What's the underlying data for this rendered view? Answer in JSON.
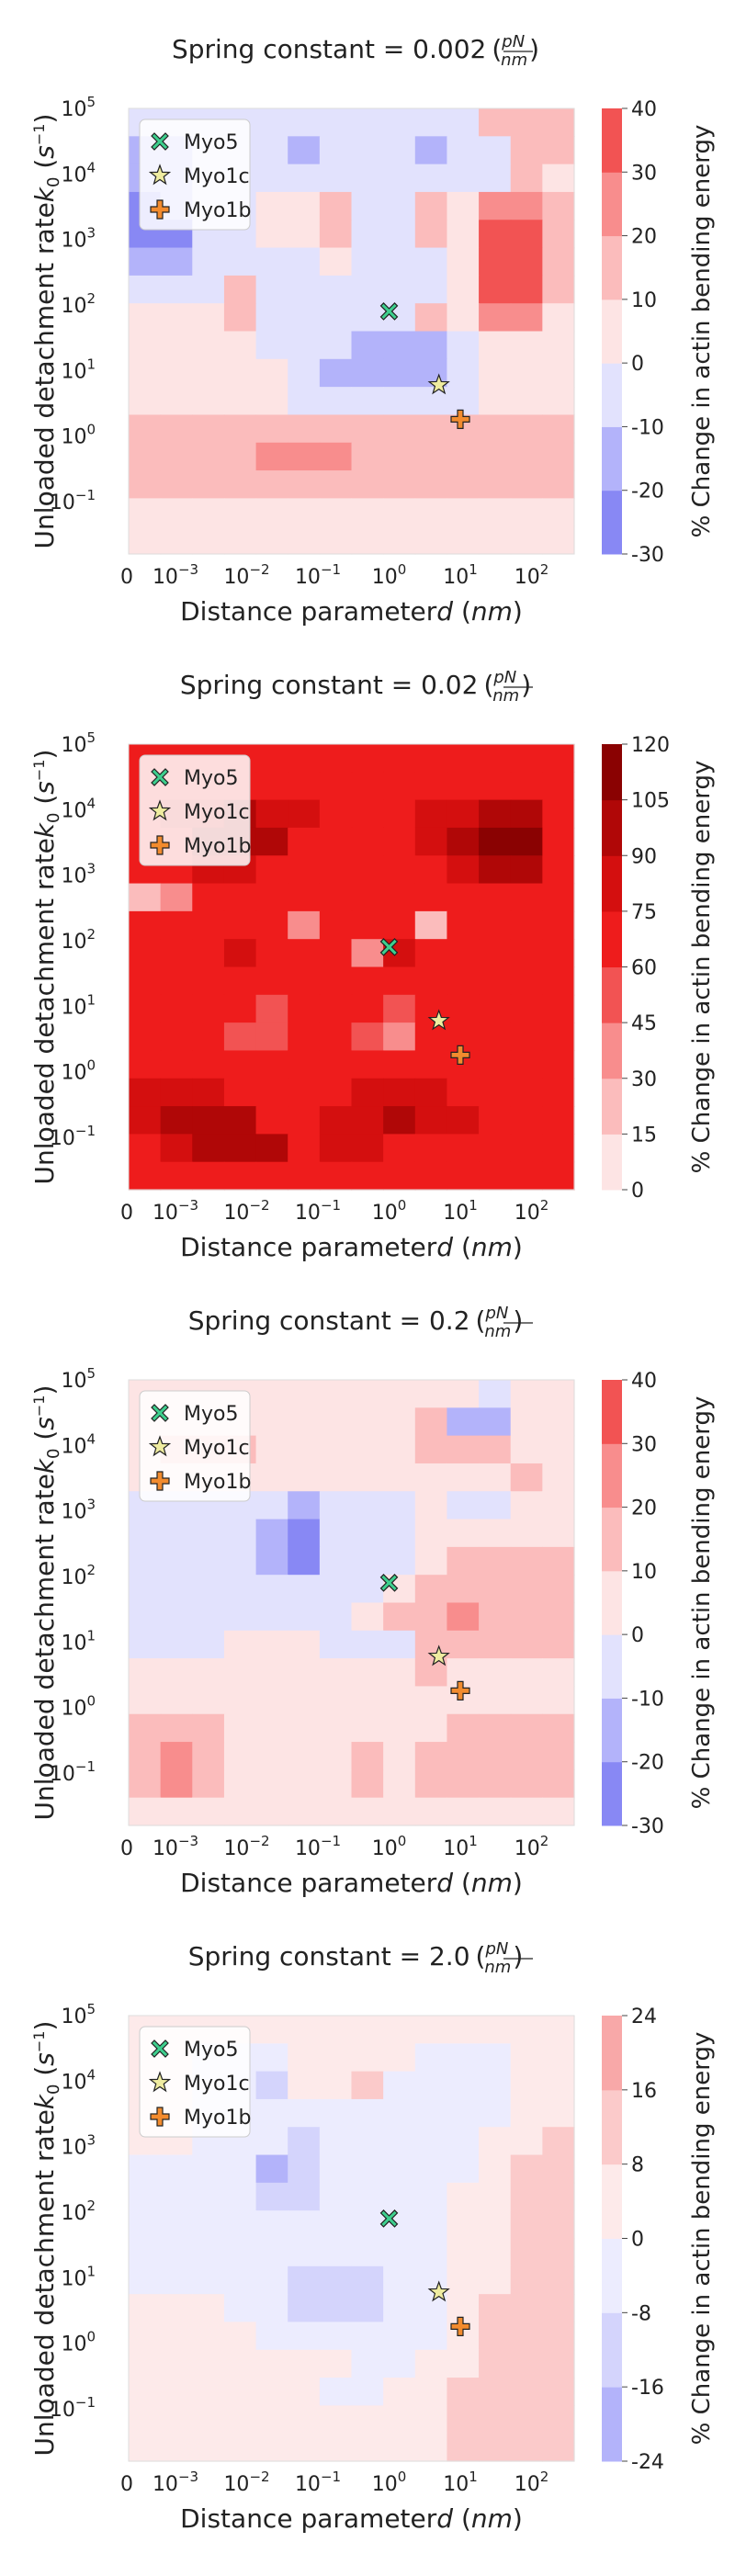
{
  "chart_data": [
    {
      "type": "heatmap",
      "subtype": "filled-contour",
      "title": "Spring constant = 0.002",
      "title_unit_num": "pN",
      "title_unit_den": "nm",
      "xlabel": "Distance parameter",
      "xlabel_var": "d",
      "xlabel_unit": "nm",
      "ylabel": "Unloaded detachment rate",
      "ylabel_var": "k",
      "ylabel_sub": "0",
      "ylabel_unit_base": "s",
      "ylabel_unit_exp": "−1",
      "xscale": "log",
      "yscale": "log",
      "xticks": [
        {
          "base": "0",
          "exp": ""
        },
        {
          "base": "10",
          "exp": "−3"
        },
        {
          "base": "10",
          "exp": "−2"
        },
        {
          "base": "10",
          "exp": "−1"
        },
        {
          "base": "10",
          "exp": "0"
        },
        {
          "base": "10",
          "exp": "1"
        },
        {
          "base": "10",
          "exp": "2"
        }
      ],
      "yticks": [
        {
          "base": "10",
          "exp": "−1"
        },
        {
          "base": "10",
          "exp": "0"
        },
        {
          "base": "10",
          "exp": "1"
        },
        {
          "base": "10",
          "exp": "2"
        },
        {
          "base": "10",
          "exp": "3"
        },
        {
          "base": "10",
          "exp": "4"
        },
        {
          "base": "10",
          "exp": "5"
        }
      ],
      "colorbar_label": "% Change in actin bending energy",
      "colorbar_ticks": [
        -30,
        -20,
        -10,
        0,
        10,
        20,
        30,
        40
      ],
      "colorbar_range": [
        -30,
        40
      ],
      "level_colors": [
        "#8888f4",
        "#b3b3fa",
        "#e2e2fd",
        "#fde4e4",
        "#fbbcbc",
        "#f88d8d",
        "#f25353"
      ],
      "legend_position": "upper-left",
      "markers": [
        {
          "name": "Myo5",
          "x": 1.0,
          "y": 80,
          "color": "#3ecf8e",
          "shape": "x"
        },
        {
          "name": "Myo1c",
          "x": 5.0,
          "y": 6,
          "color": "#efeca0",
          "shape": "star"
        },
        {
          "name": "Myo1b",
          "x": 10.0,
          "y": 1.8,
          "color": "#f28b2e",
          "shape": "plus"
        }
      ],
      "grid": false
    },
    {
      "type": "heatmap",
      "subtype": "filled-contour",
      "title": "Spring constant = 0.02",
      "title_unit_num": "pN",
      "title_unit_den": "nm",
      "xlabel": "Distance parameter",
      "xlabel_var": "d",
      "xlabel_unit": "nm",
      "ylabel": "Unloaded detachment rate",
      "ylabel_var": "k",
      "ylabel_sub": "0",
      "ylabel_unit_base": "s",
      "ylabel_unit_exp": "−1",
      "xscale": "log",
      "yscale": "log",
      "xticks": [
        {
          "base": "0",
          "exp": ""
        },
        {
          "base": "10",
          "exp": "−3"
        },
        {
          "base": "10",
          "exp": "−2"
        },
        {
          "base": "10",
          "exp": "−1"
        },
        {
          "base": "10",
          "exp": "0"
        },
        {
          "base": "10",
          "exp": "1"
        },
        {
          "base": "10",
          "exp": "2"
        }
      ],
      "yticks": [
        {
          "base": "10",
          "exp": "−1"
        },
        {
          "base": "10",
          "exp": "0"
        },
        {
          "base": "10",
          "exp": "1"
        },
        {
          "base": "10",
          "exp": "2"
        },
        {
          "base": "10",
          "exp": "3"
        },
        {
          "base": "10",
          "exp": "4"
        },
        {
          "base": "10",
          "exp": "5"
        }
      ],
      "colorbar_label": "% Change in actin bending energy",
      "colorbar_ticks": [
        0,
        15,
        30,
        45,
        60,
        75,
        90,
        105,
        120
      ],
      "colorbar_range": [
        0,
        120
      ],
      "level_colors": [
        "#fde4e4",
        "#fbbcbc",
        "#f88d8d",
        "#f25353",
        "#ee1c1c",
        "#d40f0f",
        "#b00707",
        "#8a0202"
      ],
      "legend_position": "upper-left",
      "markers": [
        {
          "name": "Myo5",
          "x": 1.0,
          "y": 80,
          "color": "#3ecf8e",
          "shape": "x"
        },
        {
          "name": "Myo1c",
          "x": 5.0,
          "y": 6,
          "color": "#efeca0",
          "shape": "star"
        },
        {
          "name": "Myo1b",
          "x": 10.0,
          "y": 1.8,
          "color": "#f28b2e",
          "shape": "plus"
        }
      ],
      "grid": false
    },
    {
      "type": "heatmap",
      "subtype": "filled-contour",
      "title": "Spring constant = 0.2",
      "title_unit_num": "pN",
      "title_unit_den": "nm",
      "xlabel": "Distance parameter",
      "xlabel_var": "d",
      "xlabel_unit": "nm",
      "ylabel": "Unloaded detachment rate",
      "ylabel_var": "k",
      "ylabel_sub": "0",
      "ylabel_unit_base": "s",
      "ylabel_unit_exp": "−1",
      "xscale": "log",
      "yscale": "log",
      "xticks": [
        {
          "base": "0",
          "exp": ""
        },
        {
          "base": "10",
          "exp": "−3"
        },
        {
          "base": "10",
          "exp": "−2"
        },
        {
          "base": "10",
          "exp": "−1"
        },
        {
          "base": "10",
          "exp": "0"
        },
        {
          "base": "10",
          "exp": "1"
        },
        {
          "base": "10",
          "exp": "2"
        }
      ],
      "yticks": [
        {
          "base": "10",
          "exp": "−1"
        },
        {
          "base": "10",
          "exp": "0"
        },
        {
          "base": "10",
          "exp": "1"
        },
        {
          "base": "10",
          "exp": "2"
        },
        {
          "base": "10",
          "exp": "3"
        },
        {
          "base": "10",
          "exp": "4"
        },
        {
          "base": "10",
          "exp": "5"
        }
      ],
      "colorbar_label": "% Change in actin bending energy",
      "colorbar_ticks": [
        -30,
        -20,
        -10,
        0,
        10,
        20,
        30,
        40
      ],
      "colorbar_range": [
        -30,
        40
      ],
      "level_colors": [
        "#8888f4",
        "#b3b3fa",
        "#e2e2fd",
        "#fde4e4",
        "#fbbcbc",
        "#f88d8d",
        "#f25353"
      ],
      "legend_position": "upper-left",
      "markers": [
        {
          "name": "Myo5",
          "x": 1.0,
          "y": 80,
          "color": "#3ecf8e",
          "shape": "x"
        },
        {
          "name": "Myo1c",
          "x": 5.0,
          "y": 6,
          "color": "#efeca0",
          "shape": "star"
        },
        {
          "name": "Myo1b",
          "x": 10.0,
          "y": 1.8,
          "color": "#f28b2e",
          "shape": "plus"
        }
      ],
      "grid": false
    },
    {
      "type": "heatmap",
      "subtype": "filled-contour",
      "title": "Spring constant = 2.0",
      "title_unit_num": "pN",
      "title_unit_den": "nm",
      "xlabel": "Distance parameter",
      "xlabel_var": "d",
      "xlabel_unit": "nm",
      "ylabel": "Unloaded detachment rate",
      "ylabel_var": "k",
      "ylabel_sub": "0",
      "ylabel_unit_base": "s",
      "ylabel_unit_exp": "−1",
      "xscale": "log",
      "yscale": "log",
      "xticks": [
        {
          "base": "0",
          "exp": ""
        },
        {
          "base": "10",
          "exp": "−3"
        },
        {
          "base": "10",
          "exp": "−2"
        },
        {
          "base": "10",
          "exp": "−1"
        },
        {
          "base": "10",
          "exp": "0"
        },
        {
          "base": "10",
          "exp": "1"
        },
        {
          "base": "10",
          "exp": "2"
        }
      ],
      "yticks": [
        {
          "base": "10",
          "exp": "−1"
        },
        {
          "base": "10",
          "exp": "0"
        },
        {
          "base": "10",
          "exp": "1"
        },
        {
          "base": "10",
          "exp": "2"
        },
        {
          "base": "10",
          "exp": "3"
        },
        {
          "base": "10",
          "exp": "4"
        },
        {
          "base": "10",
          "exp": "5"
        }
      ],
      "colorbar_label": "% Change in actin bending energy",
      "colorbar_ticks": [
        -24,
        -16,
        -8,
        0,
        8,
        16,
        24
      ],
      "colorbar_range": [
        -24,
        24
      ],
      "level_colors": [
        "#b3b3fa",
        "#d4d4fc",
        "#ececfe",
        "#fdeaea",
        "#fbcaca",
        "#f8a8a8"
      ],
      "legend_position": "upper-left",
      "markers": [
        {
          "name": "Myo5",
          "x": 1.0,
          "y": 80,
          "color": "#3ecf8e",
          "shape": "x"
        },
        {
          "name": "Myo1c",
          "x": 5.0,
          "y": 6,
          "color": "#efeca0",
          "shape": "star"
        },
        {
          "name": "Myo1b",
          "x": 10.0,
          "y": 1.8,
          "color": "#f28b2e",
          "shape": "plus"
        }
      ],
      "grid": false
    }
  ]
}
